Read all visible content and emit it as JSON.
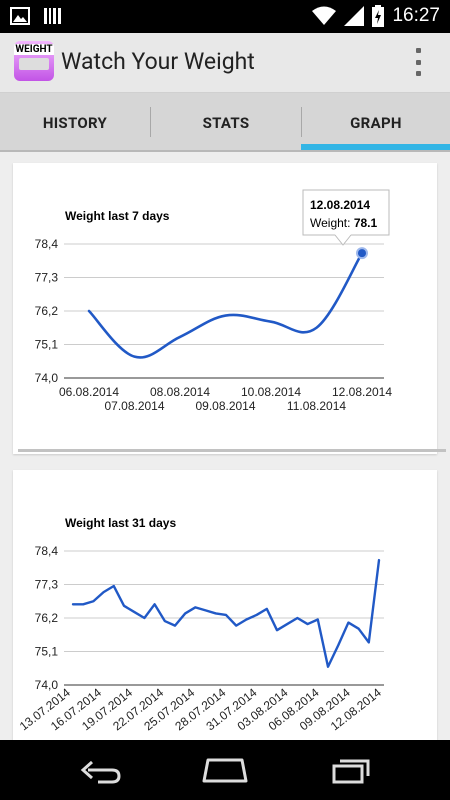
{
  "status_bar": {
    "time": "16:27",
    "icons": [
      "image-icon",
      "barcode-icon",
      "wifi-icon",
      "signal-icon",
      "battery-charging-icon"
    ]
  },
  "app": {
    "title": "Watch Your Weight",
    "icon_text": "WEIGHT"
  },
  "tabs": [
    {
      "label": "HISTORY",
      "selected": false
    },
    {
      "label": "STATS",
      "selected": false
    },
    {
      "label": "GRAPH",
      "selected": true
    }
  ],
  "colors": {
    "line": "#2159c6",
    "tab_indicator": "#33b5e5"
  },
  "tooltip": {
    "date": "12.08.2014",
    "label": "Weight: ",
    "value": "78.1"
  },
  "chart_data": [
    {
      "type": "line",
      "title": "Weight last 7 days",
      "ylim": [
        74.0,
        78.4
      ],
      "y_ticks": [
        "78,4",
        "77,3",
        "76,2",
        "75,1",
        "74,0"
      ],
      "x_tick_labels": [
        "06.08.2014",
        "07.08.2014",
        "08.08.2014",
        "09.08.2014",
        "10.08.2014",
        "11.08.2014",
        "12.08.2014"
      ],
      "series": [
        {
          "values": [
            76.2,
            74.7,
            75.35,
            76.05,
            75.85,
            75.65,
            78.1
          ]
        }
      ]
    },
    {
      "type": "line",
      "title": "Weight last 31 days",
      "ylim": [
        74.0,
        78.4
      ],
      "y_ticks": [
        "78,4",
        "77,3",
        "76,2",
        "75,1",
        "74,0"
      ],
      "x_tick_labels": [
        "13.07.2014",
        "16.07.2014",
        "19.07.2014",
        "22.07.2014",
        "25.07.2014",
        "28.07.2014",
        "31.07.2014",
        "03.08.2014",
        "06.08.2014",
        "09.08.2014",
        "12.08.2014"
      ],
      "series": [
        {
          "values": [
            76.65,
            76.65,
            76.75,
            77.05,
            77.25,
            76.6,
            76.4,
            76.2,
            76.65,
            76.1,
            75.95,
            76.35,
            76.55,
            76.45,
            76.35,
            76.3,
            75.95,
            76.15,
            76.3,
            76.5,
            75.8,
            76.0,
            76.2,
            76.0,
            76.15,
            74.6,
            75.3,
            76.05,
            75.85,
            75.4,
            78.1
          ]
        }
      ]
    }
  ]
}
